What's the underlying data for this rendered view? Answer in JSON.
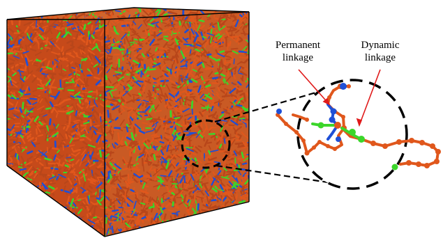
{
  "labels": {
    "permanent": [
      "Permanent",
      "linkage"
    ],
    "dynamic": [
      "Dynamic",
      "linkage"
    ]
  },
  "colors": {
    "polymer_orange": "#e0571c",
    "permanent_blue": "#1f4fd6",
    "dynamic_green": "#3bd62a",
    "arrow_red": "#e01a1a",
    "outline_black": "#000000"
  },
  "scene": {
    "description_items": [
      "simulation-box",
      "zoom-circle-small",
      "zoom-circle-large",
      "connector-lines",
      "detail-chain"
    ]
  }
}
